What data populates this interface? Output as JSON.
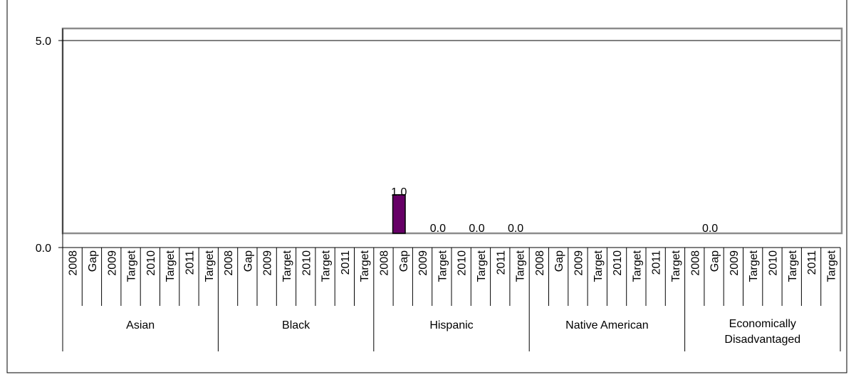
{
  "chart_data": {
    "type": "bar",
    "title": "",
    "xlabel": "",
    "ylabel": "",
    "ylim": [
      0,
      5
    ],
    "yticks": [
      {
        "value": 0,
        "label": "0.0"
      },
      {
        "value": 5,
        "label": "5.0"
      }
    ],
    "bar_color": "#660066",
    "groups": [
      {
        "name": "Asian",
        "lines": [
          "Asian"
        ]
      },
      {
        "name": "Black",
        "lines": [
          "Black"
        ]
      },
      {
        "name": "Hispanic",
        "lines": [
          "Hispanic"
        ]
      },
      {
        "name": "Native American",
        "lines": [
          "Native American"
        ]
      },
      {
        "name": "Economically Disadvantaged",
        "lines": [
          "Economically",
          "Disadvantaged"
        ]
      }
    ],
    "subcategories": [
      "2008",
      "Gap",
      "2009",
      "Target",
      "2010",
      "Target",
      "2011",
      "Target"
    ],
    "values": [
      [
        null,
        null,
        null,
        null,
        null,
        null,
        null,
        null
      ],
      [
        null,
        null,
        null,
        null,
        null,
        null,
        null,
        null
      ],
      [
        null,
        1.0,
        null,
        0.0,
        null,
        0.0,
        null,
        0.0
      ],
      [
        null,
        null,
        null,
        null,
        null,
        null,
        null,
        null
      ],
      [
        null,
        0.0,
        null,
        null,
        null,
        null,
        null,
        null
      ]
    ],
    "value_labels": [
      [
        null,
        null,
        null,
        null,
        null,
        null,
        null,
        null
      ],
      [
        null,
        null,
        null,
        null,
        null,
        null,
        null,
        null
      ],
      [
        null,
        "1.0",
        null,
        "0.0",
        null,
        "0.0",
        null,
        "0.0"
      ],
      [
        null,
        null,
        null,
        null,
        null,
        null,
        null,
        null
      ],
      [
        null,
        "0.0",
        null,
        null,
        null,
        null,
        null,
        null
      ]
    ]
  }
}
